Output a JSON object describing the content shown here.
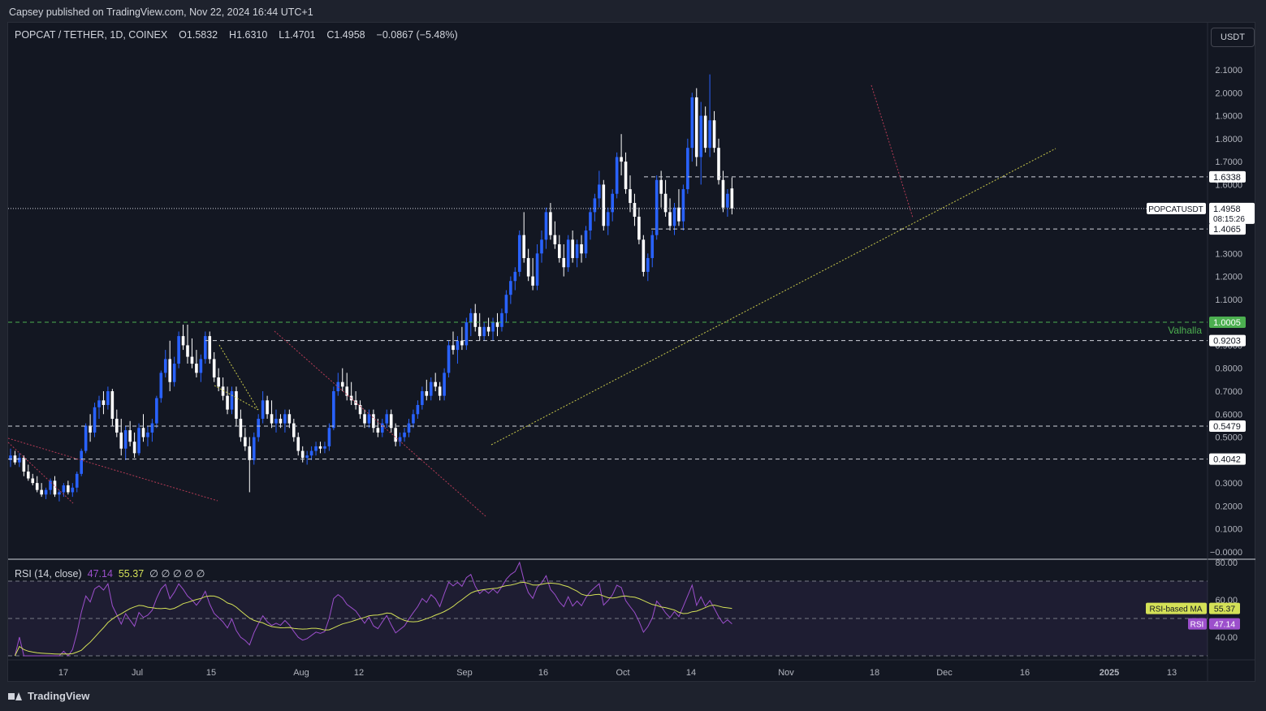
{
  "header": {
    "published": "Capsey published on TradingView.com, Nov 22, 2024 16:44 UTC+1"
  },
  "legend": {
    "symbol": "POPCAT / TETHER, 1D, COINEX",
    "open_label": "O",
    "open": "1.5832",
    "high_label": "H",
    "high": "1.6310",
    "low_label": "L",
    "low": "1.4701",
    "close_label": "C",
    "close": "1.4958",
    "change": "−0.0867 (−5.48%)"
  },
  "currency_button": "USDT",
  "footer": {
    "brand": "TradingView"
  },
  "colors": {
    "background": "#131722",
    "up_candle": "#2962ff",
    "down_candle": "#ffffff",
    "rsi_line": "#9c4fcc",
    "rsi_ma": "#d4e157",
    "valhalla": "#4caf50",
    "dashed_level": "#d1d4dc"
  },
  "chart_data": [
    {
      "type": "candlestick",
      "title": "POPCAT / TETHER, 1D, COINEX",
      "ylim": [
        0.0,
        2.15
      ],
      "y_ticks": [
        "2.1000",
        "2.0000",
        "1.9000",
        "1.8000",
        "1.7000",
        "1.6000",
        "1.5000",
        "1.4000",
        "1.3000",
        "1.2000",
        "1.1000",
        "1.0000",
        "0.9000",
        "0.8000",
        "0.7000",
        "0.6000",
        "0.5000",
        "0.4000",
        "0.3000",
        "0.2000",
        "0.1000",
        "−0.0000"
      ],
      "y_tick_values": [
        2.1,
        2.0,
        1.9,
        1.8,
        1.7,
        1.6,
        1.5,
        1.4,
        1.3,
        1.2,
        1.1,
        1.0,
        0.9,
        0.8,
        0.7,
        0.6,
        0.5,
        0.4,
        0.3,
        0.2,
        0.1,
        0.0
      ],
      "x_ticks": [
        "17",
        "Jul",
        "15",
        "Aug",
        "12",
        "Sep",
        "16",
        "Oct",
        "14",
        "Nov",
        "18",
        "Dec",
        "16",
        "2025",
        "13"
      ],
      "candles_ohlc": [
        [
          0.4,
          0.45,
          0.37,
          0.42
        ],
        [
          0.42,
          0.44,
          0.38,
          0.39
        ],
        [
          0.39,
          0.43,
          0.37,
          0.41
        ],
        [
          0.41,
          0.42,
          0.33,
          0.35
        ],
        [
          0.35,
          0.38,
          0.31,
          0.32
        ],
        [
          0.32,
          0.34,
          0.29,
          0.3
        ],
        [
          0.3,
          0.33,
          0.26,
          0.27
        ],
        [
          0.27,
          0.3,
          0.24,
          0.25
        ],
        [
          0.25,
          0.28,
          0.23,
          0.27
        ],
        [
          0.27,
          0.32,
          0.25,
          0.31
        ],
        [
          0.31,
          0.33,
          0.24,
          0.25
        ],
        [
          0.25,
          0.27,
          0.22,
          0.26
        ],
        [
          0.26,
          0.3,
          0.24,
          0.29
        ],
        [
          0.29,
          0.31,
          0.25,
          0.26
        ],
        [
          0.26,
          0.3,
          0.24,
          0.28
        ],
        [
          0.28,
          0.35,
          0.26,
          0.34
        ],
        [
          0.34,
          0.45,
          0.33,
          0.44
        ],
        [
          0.44,
          0.56,
          0.43,
          0.55
        ],
        [
          0.55,
          0.6,
          0.48,
          0.52
        ],
        [
          0.52,
          0.65,
          0.5,
          0.63
        ],
        [
          0.63,
          0.68,
          0.58,
          0.66
        ],
        [
          0.66,
          0.7,
          0.6,
          0.64
        ],
        [
          0.64,
          0.72,
          0.62,
          0.7
        ],
        [
          0.7,
          0.71,
          0.55,
          0.58
        ],
        [
          0.58,
          0.62,
          0.5,
          0.52
        ],
        [
          0.52,
          0.58,
          0.42,
          0.45
        ],
        [
          0.45,
          0.55,
          0.4,
          0.53
        ],
        [
          0.53,
          0.57,
          0.46,
          0.48
        ],
        [
          0.48,
          0.52,
          0.41,
          0.43
        ],
        [
          0.43,
          0.56,
          0.42,
          0.54
        ],
        [
          0.54,
          0.6,
          0.48,
          0.5
        ],
        [
          0.5,
          0.55,
          0.46,
          0.52
        ],
        [
          0.52,
          0.58,
          0.48,
          0.56
        ],
        [
          0.56,
          0.68,
          0.54,
          0.67
        ],
        [
          0.67,
          0.79,
          0.65,
          0.78
        ],
        [
          0.78,
          0.88,
          0.76,
          0.84
        ],
        [
          0.84,
          0.92,
          0.7,
          0.74
        ],
        [
          0.74,
          0.85,
          0.72,
          0.82
        ],
        [
          0.82,
          0.96,
          0.8,
          0.94
        ],
        [
          0.94,
          0.99,
          0.88,
          0.9
        ],
        [
          0.9,
          0.99,
          0.82,
          0.85
        ],
        [
          0.85,
          0.93,
          0.8,
          0.82
        ],
        [
          0.82,
          0.88,
          0.76,
          0.78
        ],
        [
          0.78,
          0.86,
          0.74,
          0.84
        ],
        [
          0.84,
          0.96,
          0.82,
          0.94
        ],
        [
          0.94,
          0.96,
          0.82,
          0.84
        ],
        [
          0.84,
          0.87,
          0.74,
          0.76
        ],
        [
          0.76,
          0.8,
          0.7,
          0.72
        ],
        [
          0.72,
          0.76,
          0.66,
          0.68
        ],
        [
          0.68,
          0.72,
          0.6,
          0.62
        ],
        [
          0.62,
          0.72,
          0.6,
          0.7
        ],
        [
          0.7,
          0.72,
          0.55,
          0.58
        ],
        [
          0.58,
          0.62,
          0.48,
          0.5
        ],
        [
          0.5,
          0.54,
          0.44,
          0.46
        ],
        [
          0.46,
          0.5,
          0.26,
          0.4
        ],
        [
          0.4,
          0.52,
          0.38,
          0.5
        ],
        [
          0.5,
          0.6,
          0.48,
          0.58
        ],
        [
          0.58,
          0.7,
          0.56,
          0.66
        ],
        [
          0.66,
          0.68,
          0.58,
          0.6
        ],
        [
          0.6,
          0.66,
          0.54,
          0.56
        ],
        [
          0.56,
          0.62,
          0.52,
          0.58
        ],
        [
          0.58,
          0.6,
          0.54,
          0.56
        ],
        [
          0.56,
          0.62,
          0.52,
          0.6
        ],
        [
          0.6,
          0.62,
          0.54,
          0.56
        ],
        [
          0.56,
          0.58,
          0.48,
          0.5
        ],
        [
          0.5,
          0.52,
          0.42,
          0.44
        ],
        [
          0.44,
          0.46,
          0.39,
          0.41
        ],
        [
          0.41,
          0.44,
          0.38,
          0.42
        ],
        [
          0.42,
          0.46,
          0.4,
          0.44
        ],
        [
          0.44,
          0.48,
          0.42,
          0.46
        ],
        [
          0.46,
          0.48,
          0.43,
          0.45
        ],
        [
          0.45,
          0.48,
          0.43,
          0.46
        ],
        [
          0.46,
          0.56,
          0.44,
          0.54
        ],
        [
          0.54,
          0.72,
          0.53,
          0.7
        ],
        [
          0.7,
          0.78,
          0.68,
          0.74
        ],
        [
          0.74,
          0.8,
          0.7,
          0.72
        ],
        [
          0.72,
          0.78,
          0.66,
          0.68
        ],
        [
          0.68,
          0.74,
          0.64,
          0.66
        ],
        [
          0.66,
          0.7,
          0.62,
          0.64
        ],
        [
          0.64,
          0.66,
          0.58,
          0.6
        ],
        [
          0.6,
          0.62,
          0.54,
          0.56
        ],
        [
          0.56,
          0.62,
          0.54,
          0.6
        ],
        [
          0.6,
          0.62,
          0.52,
          0.54
        ],
        [
          0.54,
          0.58,
          0.5,
          0.52
        ],
        [
          0.52,
          0.58,
          0.5,
          0.56
        ],
        [
          0.56,
          0.62,
          0.54,
          0.6
        ],
        [
          0.6,
          0.62,
          0.52,
          0.54
        ],
        [
          0.54,
          0.56,
          0.46,
          0.48
        ],
        [
          0.48,
          0.52,
          0.46,
          0.5
        ],
        [
          0.5,
          0.54,
          0.48,
          0.52
        ],
        [
          0.52,
          0.58,
          0.5,
          0.56
        ],
        [
          0.56,
          0.62,
          0.54,
          0.6
        ],
        [
          0.6,
          0.66,
          0.58,
          0.64
        ],
        [
          0.64,
          0.72,
          0.62,
          0.7
        ],
        [
          0.7,
          0.75,
          0.66,
          0.68
        ],
        [
          0.68,
          0.76,
          0.66,
          0.74
        ],
        [
          0.74,
          0.78,
          0.7,
          0.72
        ],
        [
          0.72,
          0.74,
          0.66,
          0.68
        ],
        [
          0.68,
          0.8,
          0.66,
          0.78
        ],
        [
          0.78,
          0.92,
          0.76,
          0.9
        ],
        [
          0.9,
          0.96,
          0.86,
          0.88
        ],
        [
          0.88,
          0.94,
          0.82,
          0.92
        ],
        [
          0.92,
          0.98,
          0.88,
          0.9
        ],
        [
          0.9,
          1.02,
          0.88,
          1.0
        ],
        [
          1.0,
          1.06,
          0.94,
          1.04
        ],
        [
          1.04,
          1.08,
          0.96,
          0.98
        ],
        [
          0.98,
          1.04,
          0.92,
          0.94
        ],
        [
          0.94,
          1.0,
          0.92,
          0.98
        ],
        [
          0.98,
          1.02,
          0.94,
          0.96
        ],
        [
          0.96,
          1.02,
          0.92,
          1.0
        ],
        [
          1.0,
          1.04,
          0.94,
          0.98
        ],
        [
          0.98,
          1.06,
          0.96,
          1.04
        ],
        [
          1.04,
          1.14,
          1.0,
          1.12
        ],
        [
          1.12,
          1.2,
          1.08,
          1.18
        ],
        [
          1.18,
          1.24,
          1.14,
          1.22
        ],
        [
          1.22,
          1.4,
          1.2,
          1.38
        ],
        [
          1.38,
          1.48,
          1.26,
          1.28
        ],
        [
          1.28,
          1.32,
          1.18,
          1.2
        ],
        [
          1.2,
          1.28,
          1.14,
          1.16
        ],
        [
          1.16,
          1.34,
          1.14,
          1.3
        ],
        [
          1.3,
          1.4,
          1.26,
          1.36
        ],
        [
          1.36,
          1.5,
          1.32,
          1.48
        ],
        [
          1.48,
          1.52,
          1.36,
          1.38
        ],
        [
          1.38,
          1.44,
          1.32,
          1.34
        ],
        [
          1.34,
          1.38,
          1.26,
          1.28
        ],
        [
          1.28,
          1.34,
          1.2,
          1.24
        ],
        [
          1.24,
          1.38,
          1.22,
          1.36
        ],
        [
          1.36,
          1.4,
          1.26,
          1.28
        ],
        [
          1.28,
          1.36,
          1.24,
          1.34
        ],
        [
          1.34,
          1.38,
          1.26,
          1.3
        ],
        [
          1.3,
          1.42,
          1.28,
          1.4
        ],
        [
          1.4,
          1.5,
          1.36,
          1.48
        ],
        [
          1.48,
          1.56,
          1.44,
          1.54
        ],
        [
          1.54,
          1.66,
          1.5,
          1.6
        ],
        [
          1.6,
          1.62,
          1.4,
          1.42
        ],
        [
          1.42,
          1.5,
          1.38,
          1.48
        ],
        [
          1.48,
          1.58,
          1.44,
          1.56
        ],
        [
          1.56,
          1.74,
          1.54,
          1.72
        ],
        [
          1.72,
          1.82,
          1.64,
          1.7
        ],
        [
          1.7,
          1.74,
          1.56,
          1.58
        ],
        [
          1.58,
          1.64,
          1.48,
          1.52
        ],
        [
          1.52,
          1.56,
          1.42,
          1.46
        ],
        [
          1.46,
          1.5,
          1.34,
          1.36
        ],
        [
          1.36,
          1.38,
          1.2,
          1.22
        ],
        [
          1.22,
          1.3,
          1.18,
          1.28
        ],
        [
          1.28,
          1.4,
          1.24,
          1.38
        ],
        [
          1.38,
          1.64,
          1.36,
          1.62
        ],
        [
          1.62,
          1.66,
          1.5,
          1.56
        ],
        [
          1.56,
          1.62,
          1.46,
          1.48
        ],
        [
          1.48,
          1.54,
          1.4,
          1.42
        ],
        [
          1.42,
          1.52,
          1.38,
          1.5
        ],
        [
          1.5,
          1.58,
          1.42,
          1.44
        ],
        [
          1.44,
          1.6,
          1.4,
          1.58
        ],
        [
          1.58,
          1.8,
          1.56,
          1.76
        ],
        [
          1.76,
          2.0,
          1.7,
          1.98
        ],
        [
          1.98,
          2.02,
          1.68,
          1.72
        ],
        [
          1.72,
          1.96,
          1.6,
          1.9
        ],
        [
          1.9,
          1.94,
          1.74,
          1.76
        ],
        [
          1.76,
          2.08,
          1.72,
          1.88
        ],
        [
          1.88,
          1.92,
          1.74,
          1.76
        ],
        [
          1.76,
          1.8,
          1.6,
          1.62
        ],
        [
          1.62,
          1.66,
          1.48,
          1.5
        ],
        [
          1.5,
          1.58,
          1.46,
          1.56
        ],
        [
          1.5832,
          1.631,
          1.4701,
          1.4958
        ]
      ],
      "levels": [
        {
          "value": 1.6338,
          "label": "1.6338"
        },
        {
          "value": 1.4065,
          "label": "1.4065"
        },
        {
          "value": 1.0005,
          "label": "1.0005",
          "name": "Valhalla"
        },
        {
          "value": 0.9203,
          "label": "0.9203"
        },
        {
          "value": 0.5479,
          "label": "0.5479"
        },
        {
          "value": 0.4042,
          "label": "0.4042"
        }
      ],
      "last_price": {
        "symbol": "POPCATUSDT",
        "value": "1.4958",
        "countdown": "08:15:26"
      }
    },
    {
      "type": "line",
      "title": "RSI (14, close)",
      "ylim": [
        25,
        82
      ],
      "y_ticks": [
        "80.00",
        "60.00",
        "40.00"
      ],
      "y_tick_values": [
        80,
        60,
        40
      ],
      "series": [
        {
          "name": "RSI",
          "last": "47.14"
        },
        {
          "name": "RSI-based MA",
          "last": "55.37"
        }
      ]
    }
  ],
  "rsi_legend": {
    "title": "RSI (14, close)",
    "rsi_value": "47.14",
    "ma_value": "55.37",
    "extras": "∅ ∅ ∅ ∅ ∅"
  }
}
